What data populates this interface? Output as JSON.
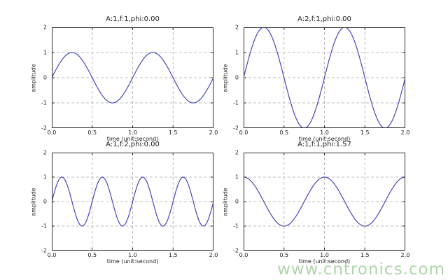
{
  "figure": {
    "background": "#ffffff",
    "line_color": "#4646bd",
    "grid_color": "#a6a6a6",
    "spine_color": "#2e2e2e",
    "text_color": "#1c1c1c"
  },
  "watermark": {
    "text": "www.cntronics.com",
    "color": "#aed6aa"
  },
  "chart_data": [
    {
      "type": "line",
      "title": "A:1,f:1,phi:0.00",
      "xlabel": "time (unit:second)",
      "ylabel": "amplitude",
      "xlim": [
        0,
        2
      ],
      "ylim": [
        -2,
        2
      ],
      "x_ticks": [
        0,
        0.5,
        1,
        1.5,
        2
      ],
      "x_tick_labels": [
        "0.0",
        "0.5",
        "1.0",
        "1.5",
        "2.0"
      ],
      "y_ticks": [
        -2,
        -1,
        0,
        1,
        2
      ],
      "y_tick_labels": [
        "-2",
        "-1",
        "0",
        "1",
        "2"
      ],
      "grid": true,
      "legend": "none",
      "series": [
        {
          "name": "sine",
          "function": "y = A*sin(2*pi*f*t + phi)",
          "amplitude": 1,
          "frequency": 1,
          "phase": 0.0
        }
      ]
    },
    {
      "type": "line",
      "title": "A:2,f:1,phi:0.00",
      "xlabel": "time (unit:second)",
      "ylabel": "amplitude",
      "xlim": [
        0,
        2
      ],
      "ylim": [
        -2,
        2
      ],
      "x_ticks": [
        0,
        0.5,
        1,
        1.5,
        2
      ],
      "x_tick_labels": [
        "0.0",
        "0.5",
        "1.0",
        "1.5",
        "2.0"
      ],
      "y_ticks": [
        -2,
        -1,
        0,
        1,
        2
      ],
      "y_tick_labels": [
        "-2",
        "-1",
        "0",
        "1",
        "2"
      ],
      "grid": true,
      "legend": "none",
      "series": [
        {
          "name": "sine",
          "function": "y = A*sin(2*pi*f*t + phi)",
          "amplitude": 2,
          "frequency": 1,
          "phase": 0.0
        }
      ]
    },
    {
      "type": "line",
      "title": "A:1,f:2,phi:0.00",
      "xlabel": "time (unit:second)",
      "ylabel": "amplitude",
      "xlim": [
        0,
        2
      ],
      "ylim": [
        -2,
        2
      ],
      "x_ticks": [
        0,
        0.5,
        1,
        1.5,
        2
      ],
      "x_tick_labels": [
        "0.0",
        "0.5",
        "1.0",
        "1.5",
        "2.0"
      ],
      "y_ticks": [
        -2,
        -1,
        0,
        1,
        2
      ],
      "y_tick_labels": [
        "-2",
        "-1",
        "0",
        "1",
        "2"
      ],
      "grid": true,
      "legend": "none",
      "series": [
        {
          "name": "sine",
          "function": "y = A*sin(2*pi*f*t + phi)",
          "amplitude": 1,
          "frequency": 2,
          "phase": 0.0
        }
      ]
    },
    {
      "type": "line",
      "title": "A:1,f:1,phi:1.57",
      "xlabel": "time (unit:second)",
      "ylabel": "amplitude",
      "xlim": [
        0,
        2
      ],
      "ylim": [
        -2,
        2
      ],
      "x_ticks": [
        0,
        0.5,
        1,
        1.5,
        2
      ],
      "x_tick_labels": [
        "0.0",
        "0.5",
        "1.0",
        "1.5",
        "2.0"
      ],
      "y_ticks": [
        -2,
        -1,
        0,
        1,
        2
      ],
      "y_tick_labels": [
        "-2",
        "-1",
        "0",
        "1",
        "2"
      ],
      "grid": true,
      "legend": "none",
      "series": [
        {
          "name": "sine",
          "function": "y = A*sin(2*pi*f*t + phi)",
          "amplitude": 1,
          "frequency": 1,
          "phase": 1.57
        }
      ]
    }
  ]
}
